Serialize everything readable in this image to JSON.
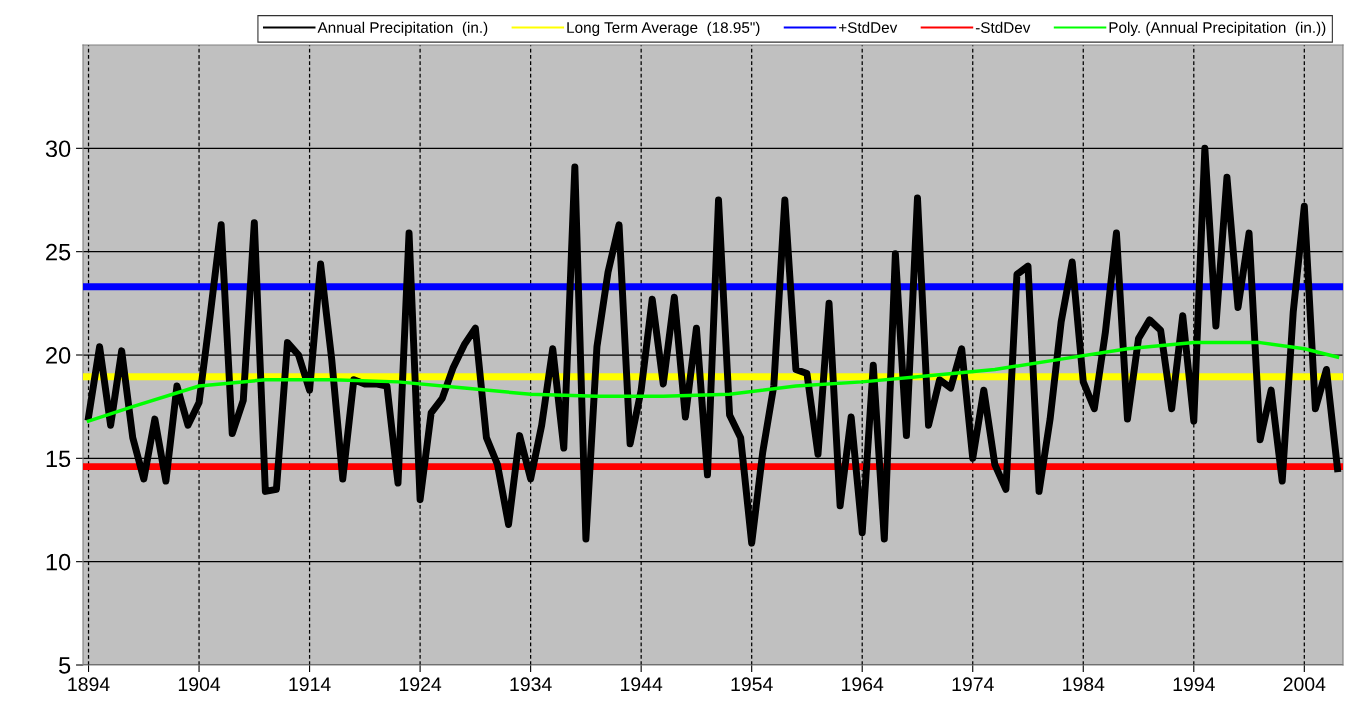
{
  "chart_data": {
    "type": "line",
    "x": [
      1894,
      1895,
      1896,
      1897,
      1898,
      1899,
      1900,
      1901,
      1902,
      1903,
      1904,
      1905,
      1906,
      1907,
      1908,
      1909,
      1910,
      1911,
      1912,
      1913,
      1914,
      1915,
      1916,
      1917,
      1918,
      1919,
      1920,
      1921,
      1922,
      1923,
      1924,
      1925,
      1926,
      1927,
      1928,
      1929,
      1930,
      1931,
      1932,
      1933,
      1934,
      1935,
      1936,
      1937,
      1938,
      1939,
      1940,
      1941,
      1942,
      1943,
      1944,
      1945,
      1946,
      1947,
      1948,
      1949,
      1950,
      1951,
      1952,
      1953,
      1954,
      1955,
      1956,
      1957,
      1958,
      1959,
      1960,
      1961,
      1962,
      1963,
      1964,
      1965,
      1966,
      1967,
      1968,
      1969,
      1970,
      1971,
      1972,
      1973,
      1974,
      1975,
      1976,
      1977,
      1978,
      1979,
      1980,
      1981,
      1982,
      1983,
      1984,
      1985,
      1986,
      1987,
      1988,
      1989,
      1990,
      1991,
      1992,
      1993,
      1994,
      1995,
      1996,
      1997,
      1998,
      1999,
      2000,
      2001,
      2002,
      2003,
      2004,
      2005,
      2006,
      2007
    ],
    "series": [
      {
        "name": "Annual Precipitation  (in.)",
        "color": "#000000",
        "values": [
          17.0,
          20.4,
          16.6,
          20.2,
          16.0,
          14.0,
          16.9,
          13.9,
          18.5,
          16.6,
          17.7,
          21.9,
          26.3,
          16.2,
          17.8,
          26.4,
          13.4,
          13.5,
          20.6,
          20.0,
          18.3,
          24.4,
          19.8,
          14.0,
          18.8,
          18.6,
          18.6,
          18.5,
          13.8,
          25.9,
          13.0,
          17.2,
          17.9,
          19.4,
          20.5,
          21.3,
          16.0,
          14.7,
          11.8,
          16.1,
          14.0,
          16.6,
          20.3,
          15.5,
          29.1,
          11.1,
          20.4,
          24.0,
          26.3,
          15.7,
          18.3,
          22.7,
          18.6,
          22.8,
          17.0,
          21.3,
          14.2,
          27.5,
          17.1,
          16.0,
          10.9,
          15.3,
          18.5,
          27.5,
          19.3,
          19.1,
          15.2,
          22.5,
          12.7,
          17.0,
          11.4,
          19.5,
          11.1,
          24.9,
          16.1,
          27.6,
          16.6,
          18.8,
          18.4,
          20.3,
          15.0,
          18.3,
          14.7,
          13.5,
          23.9,
          24.3,
          13.4,
          16.9,
          21.6,
          24.5,
          18.7,
          17.4,
          21.1,
          25.9,
          16.9,
          20.8,
          21.7,
          21.2,
          17.4,
          21.9,
          16.8,
          30.0,
          21.4,
          28.6,
          22.3,
          25.9,
          15.9,
          18.3,
          13.9,
          22.1,
          27.2,
          17.4,
          19.3,
          14.5
        ]
      },
      {
        "name": "Poly. (Annual Precipitation  (in.))",
        "color": "#00ff00",
        "type": "line",
        "x": [
          1894,
          1898,
          1904,
          1910,
          1916,
          1922,
          1928,
          1934,
          1940,
          1946,
          1952,
          1958,
          1964,
          1970,
          1976,
          1982,
          1988,
          1994,
          2000,
          2004,
          2007
        ],
        "values": [
          16.8,
          17.5,
          18.5,
          18.8,
          18.8,
          18.7,
          18.4,
          18.1,
          18.0,
          18.0,
          18.1,
          18.5,
          18.7,
          19.0,
          19.3,
          19.8,
          20.3,
          20.6,
          20.6,
          20.3,
          19.9
        ]
      }
    ],
    "ref_lines": [
      {
        "axis": "y",
        "value": 18.95,
        "label": "Long Term Average  (18.95\")",
        "color": "#ffff00"
      },
      {
        "axis": "y",
        "value": 23.3,
        "label": "+StdDev",
        "color": "#0000ff"
      },
      {
        "axis": "y",
        "value": 14.6,
        "label": "-StdDev",
        "color": "#ff0000"
      }
    ],
    "xlim": [
      1893.5,
      2007.5
    ],
    "xticks": [
      1894,
      1904,
      1914,
      1924,
      1934,
      1944,
      1954,
      1964,
      1974,
      1984,
      1994,
      2004
    ],
    "ylim": [
      5,
      35
    ],
    "yticks": [
      5,
      10,
      15,
      20,
      25,
      30
    ],
    "grid": true,
    "legend": "top",
    "marker": "none",
    "line_style": "solid"
  }
}
